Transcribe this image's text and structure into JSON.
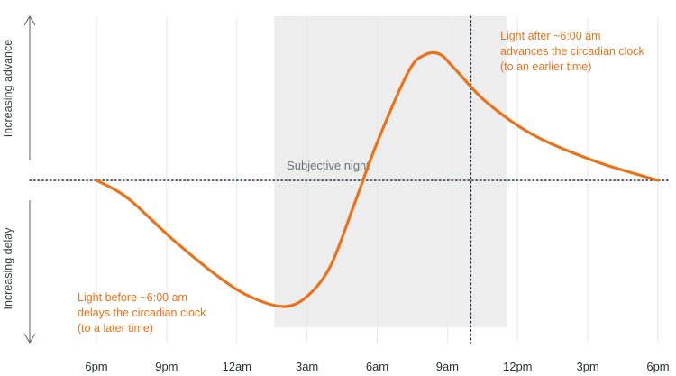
{
  "chart_data": {
    "type": "line",
    "x_ticks": [
      "6pm",
      "9pm",
      "12am",
      "3am",
      "6am",
      "9am",
      "12pm",
      "3pm",
      "6pm"
    ],
    "y_label_top": "Increasing advance",
    "y_label_bottom": "Increasing delay",
    "shaded_region": {
      "label": "Subjective night",
      "start_hour": 11.4,
      "end_hour": 26.3
    },
    "reference_line_hour": 24,
    "series": [
      {
        "color": "#e8731a",
        "points": [
          {
            "x": 0,
            "y": 0
          },
          {
            "x": 2,
            "y": -0.14
          },
          {
            "x": 5,
            "y": -0.48
          },
          {
            "x": 8,
            "y": -0.78
          },
          {
            "x": 10,
            "y": -0.93
          },
          {
            "x": 12,
            "y": -1.0
          },
          {
            "x": 13.5,
            "y": -0.92
          },
          {
            "x": 15,
            "y": -0.68
          },
          {
            "x": 16.5,
            "y": -0.2
          },
          {
            "x": 18,
            "y": 0.3
          },
          {
            "x": 20,
            "y": 0.86
          },
          {
            "x": 21,
            "y": 0.99
          },
          {
            "x": 22,
            "y": 1.0
          },
          {
            "x": 23,
            "y": 0.88
          },
          {
            "x": 25,
            "y": 0.62
          },
          {
            "x": 28,
            "y": 0.36
          },
          {
            "x": 32,
            "y": 0.15
          },
          {
            "x": 36,
            "y": 0.0
          }
        ]
      }
    ],
    "annotations": {
      "advance": [
        "Light after ~6:00 am",
        "advances the circadian clock",
        "(to an earlier time)"
      ],
      "delay": [
        "Light before ~6:00 am",
        "delays the circadian clock",
        "(to a later time)"
      ]
    },
    "x_axis_hours_range": [
      0,
      36
    ],
    "y_range": [
      -1.15,
      1.15
    ],
    "grid": "vertical",
    "baseline_style": "dotted"
  }
}
